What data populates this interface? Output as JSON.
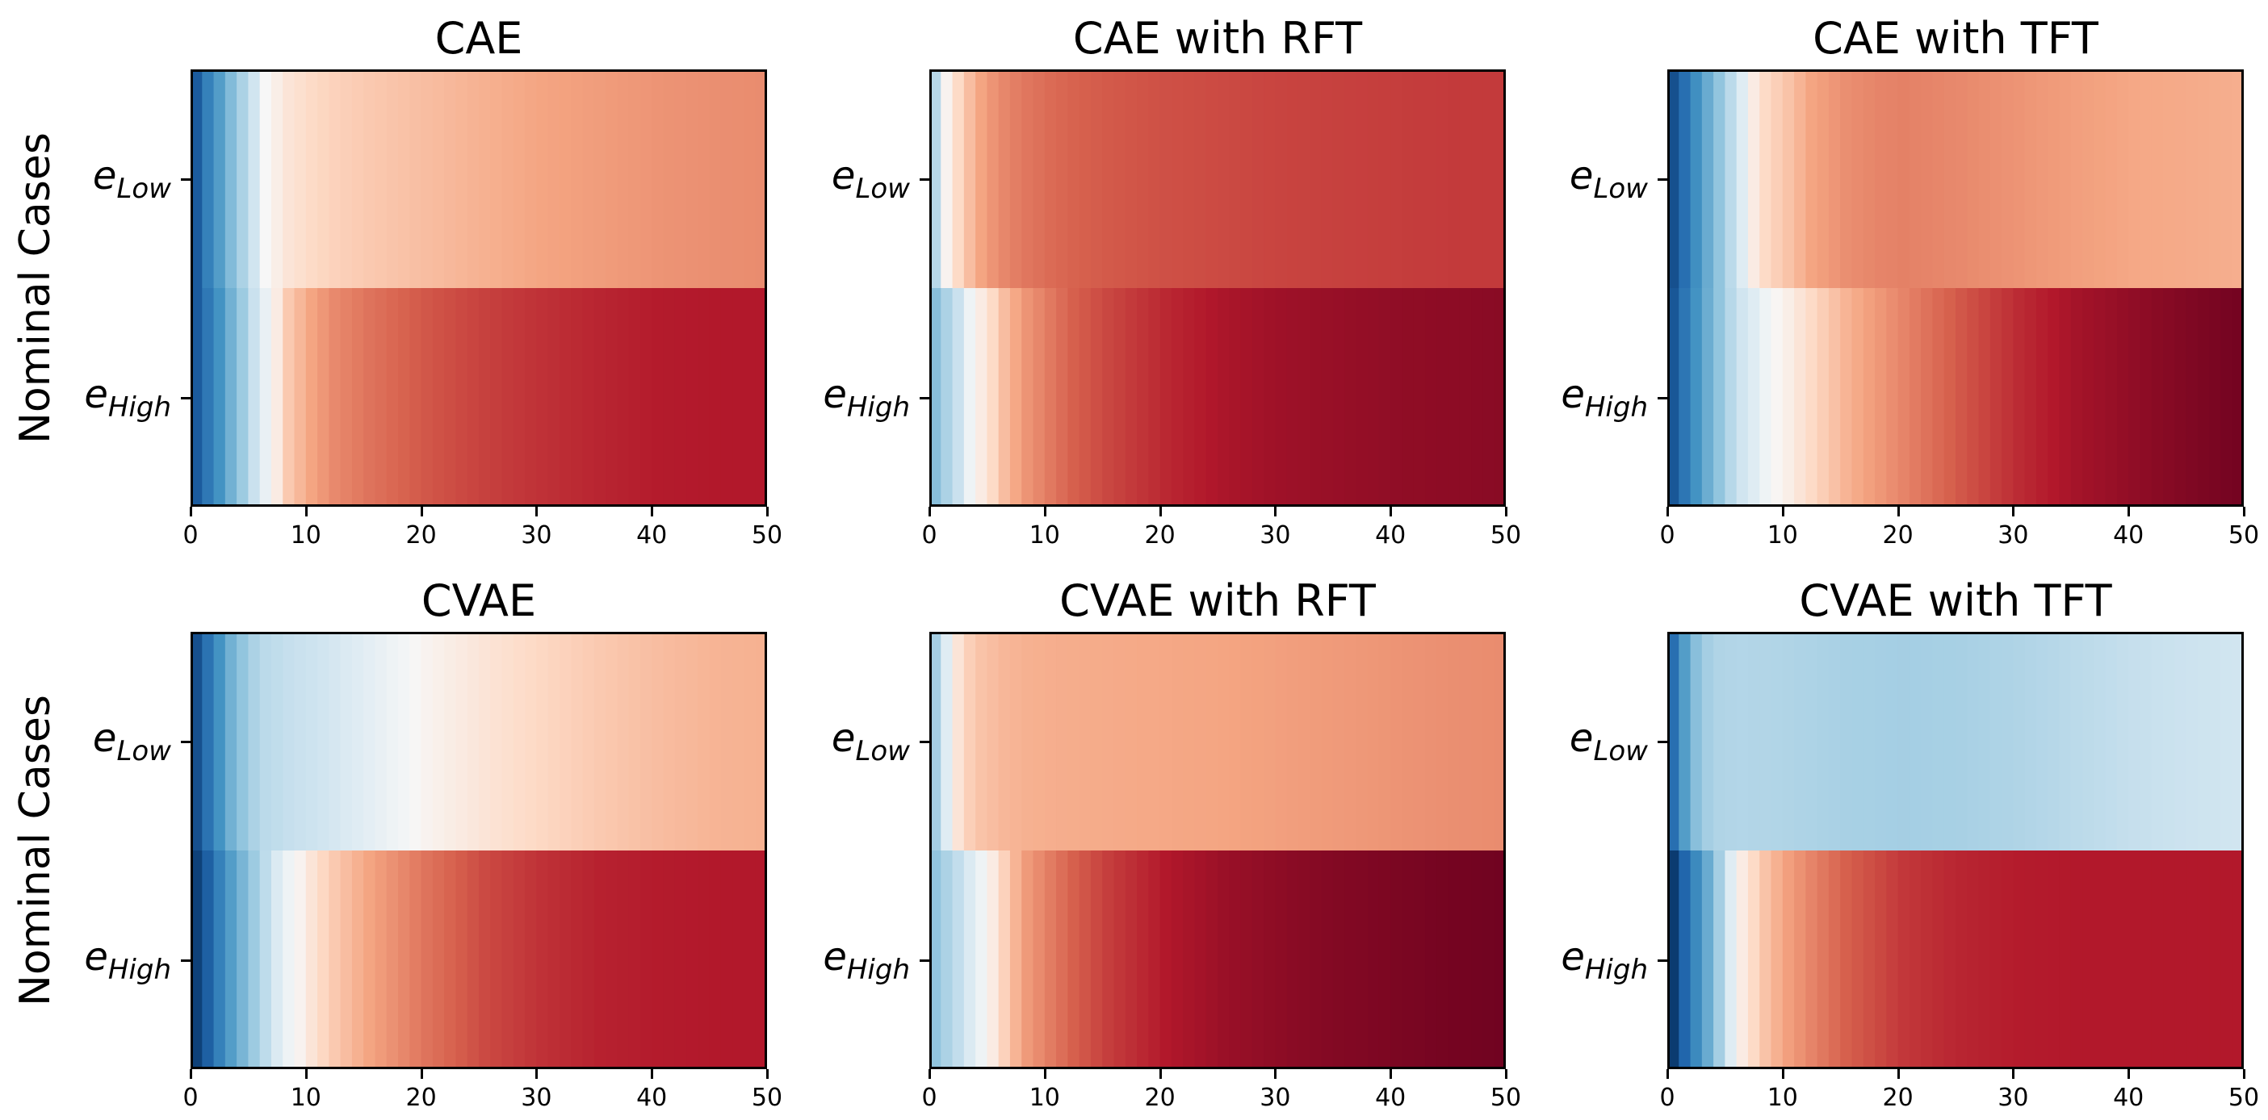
{
  "row_labels": [
    "Nominal Cases",
    "Nominal Cases"
  ],
  "panel_titles": [
    "CAE",
    "CAE with RFT",
    "CAE with TFT",
    "CVAE",
    "CVAE with RFT",
    "CVAE with TFT"
  ],
  "chart_data": [
    {
      "type": "heatmap",
      "title": "CAE",
      "ylabel": "Nominal Cases",
      "yticklabels": [
        {
          "base": "e",
          "sub": "Low"
        },
        {
          "base": "e",
          "sub": "High"
        }
      ],
      "xlim": [
        0,
        50
      ],
      "xticks": [
        0,
        10,
        20,
        30,
        40,
        50
      ],
      "vlim": [
        -1,
        1
      ],
      "colormap": "RdBu_r",
      "series": [
        {
          "name": "e_Low",
          "x": [
            0,
            1,
            2,
            3,
            4,
            5,
            6,
            7,
            8,
            10,
            12,
            15,
            20,
            25,
            30,
            35,
            40,
            45,
            49
          ],
          "values": [
            -0.8,
            -0.6,
            -0.45,
            -0.3,
            -0.18,
            -0.08,
            0.0,
            0.04,
            0.08,
            0.12,
            0.15,
            0.18,
            0.22,
            0.26,
            0.3,
            0.33,
            0.36,
            0.38,
            0.39
          ]
        },
        {
          "name": "e_High",
          "x": [
            0,
            1,
            2,
            3,
            4,
            5,
            6,
            7,
            8,
            10,
            12,
            15,
            20,
            25,
            30,
            35,
            40,
            45,
            49
          ],
          "values": [
            -0.8,
            -0.65,
            -0.5,
            -0.35,
            -0.22,
            -0.1,
            -0.03,
            0.05,
            0.18,
            0.3,
            0.4,
            0.48,
            0.58,
            0.65,
            0.7,
            0.74,
            0.77,
            0.78,
            0.78
          ]
        }
      ]
    },
    {
      "type": "heatmap",
      "title": "CAE with RFT",
      "ylabel": "",
      "yticklabels": [
        {
          "base": "e",
          "sub": "Low"
        },
        {
          "base": "e",
          "sub": "High"
        }
      ],
      "xlim": [
        0,
        50
      ],
      "xticks": [
        0,
        10,
        20,
        30,
        40,
        50
      ],
      "vlim": [
        -1,
        1
      ],
      "colormap": "RdBu_r",
      "series": [
        {
          "name": "e_Low",
          "x": [
            0,
            1,
            2,
            3,
            4,
            5,
            6,
            8,
            10,
            12,
            15,
            20,
            25,
            30,
            35,
            40,
            45,
            49
          ],
          "values": [
            -0.15,
            0.02,
            0.12,
            0.22,
            0.3,
            0.36,
            0.41,
            0.47,
            0.51,
            0.54,
            0.57,
            0.6,
            0.62,
            0.64,
            0.65,
            0.66,
            0.67,
            0.67
          ]
        },
        {
          "name": "e_High",
          "x": [
            0,
            1,
            2,
            3,
            4,
            5,
            6,
            8,
            10,
            12,
            15,
            20,
            25,
            30,
            35,
            40,
            45,
            49
          ],
          "values": [
            -0.28,
            -0.18,
            -0.1,
            -0.02,
            0.05,
            0.12,
            0.22,
            0.36,
            0.46,
            0.55,
            0.63,
            0.73,
            0.8,
            0.84,
            0.86,
            0.88,
            0.89,
            0.9
          ]
        }
      ]
    },
    {
      "type": "heatmap",
      "title": "CAE with TFT",
      "ylabel": "",
      "yticklabels": [
        {
          "base": "e",
          "sub": "Low"
        },
        {
          "base": "e",
          "sub": "High"
        }
      ],
      "xlim": [
        0,
        50
      ],
      "xticks": [
        0,
        10,
        20,
        30,
        40,
        50
      ],
      "vlim": [
        -1,
        1
      ],
      "colormap": "RdBu_r",
      "series": [
        {
          "name": "e_Low",
          "x": [
            0,
            1,
            2,
            3,
            4,
            5,
            6,
            7,
            8,
            10,
            12,
            15,
            18,
            20,
            25,
            30,
            35,
            40,
            45,
            49
          ],
          "values": [
            -0.85,
            -0.7,
            -0.52,
            -0.38,
            -0.25,
            -0.14,
            -0.05,
            0.05,
            0.12,
            0.2,
            0.3,
            0.38,
            0.42,
            0.43,
            0.4,
            0.36,
            0.32,
            0.29,
            0.28,
            0.27
          ]
        },
        {
          "name": "e_High",
          "x": [
            0,
            1,
            2,
            3,
            4,
            5,
            6,
            8,
            10,
            12,
            15,
            20,
            25,
            30,
            35,
            40,
            45,
            49
          ],
          "values": [
            -0.82,
            -0.66,
            -0.5,
            -0.37,
            -0.25,
            -0.15,
            -0.08,
            -0.02,
            0.04,
            0.12,
            0.25,
            0.42,
            0.58,
            0.72,
            0.82,
            0.88,
            0.93,
            0.96
          ]
        }
      ]
    },
    {
      "type": "heatmap",
      "title": "CVAE",
      "ylabel": "Nominal Cases",
      "yticklabels": [
        {
          "base": "e",
          "sub": "Low"
        },
        {
          "base": "e",
          "sub": "High"
        }
      ],
      "xlim": [
        0,
        50
      ],
      "xticks": [
        0,
        10,
        20,
        30,
        40,
        50
      ],
      "vlim": [
        -1,
        1
      ],
      "colormap": "RdBu_r",
      "series": [
        {
          "name": "e_Low",
          "x": [
            0,
            1,
            2,
            3,
            4,
            5,
            6,
            8,
            10,
            12,
            15,
            18,
            20,
            25,
            30,
            35,
            40,
            45,
            49
          ],
          "values": [
            -0.85,
            -0.68,
            -0.5,
            -0.35,
            -0.25,
            -0.18,
            -0.14,
            -0.11,
            -0.09,
            -0.07,
            -0.04,
            -0.01,
            0.02,
            0.08,
            0.13,
            0.18,
            0.22,
            0.25,
            0.26
          ]
        },
        {
          "name": "e_High",
          "x": [
            0,
            1,
            2,
            3,
            4,
            5,
            6,
            7,
            8,
            9,
            10,
            12,
            15,
            20,
            25,
            30,
            35,
            40,
            45,
            49
          ],
          "values": [
            -0.92,
            -0.78,
            -0.6,
            -0.45,
            -0.33,
            -0.22,
            -0.13,
            -0.06,
            -0.02,
            0.02,
            0.08,
            0.18,
            0.3,
            0.48,
            0.62,
            0.7,
            0.75,
            0.77,
            0.78,
            0.78
          ]
        }
      ]
    },
    {
      "type": "heatmap",
      "title": "CVAE with RFT",
      "ylabel": "",
      "yticklabels": [
        {
          "base": "e",
          "sub": "Low"
        },
        {
          "base": "e",
          "sub": "High"
        }
      ],
      "xlim": [
        0,
        50
      ],
      "xticks": [
        0,
        10,
        20,
        30,
        40,
        50
      ],
      "vlim": [
        -1,
        1
      ],
      "colormap": "RdBu_r",
      "series": [
        {
          "name": "e_Low",
          "x": [
            0,
            1,
            2,
            3,
            4,
            5,
            6,
            8,
            10,
            15,
            20,
            25,
            30,
            35,
            40,
            45,
            49
          ],
          "values": [
            -0.2,
            -0.05,
            0.08,
            0.16,
            0.2,
            0.22,
            0.24,
            0.26,
            0.27,
            0.28,
            0.29,
            0.3,
            0.32,
            0.34,
            0.36,
            0.38,
            0.39
          ]
        },
        {
          "name": "e_High",
          "x": [
            0,
            1,
            2,
            3,
            4,
            5,
            6,
            7,
            8,
            10,
            12,
            15,
            20,
            25,
            30,
            35,
            40,
            45,
            49
          ],
          "values": [
            -0.25,
            -0.18,
            -0.12,
            -0.06,
            -0.02,
            0.05,
            0.15,
            0.25,
            0.34,
            0.45,
            0.55,
            0.66,
            0.78,
            0.85,
            0.89,
            0.92,
            0.94,
            0.96,
            0.97
          ]
        }
      ]
    },
    {
      "type": "heatmap",
      "title": "CVAE with TFT",
      "ylabel": "",
      "yticklabels": [
        {
          "base": "e",
          "sub": "Low"
        },
        {
          "base": "e",
          "sub": "High"
        }
      ],
      "xlim": [
        0,
        50
      ],
      "xticks": [
        0,
        10,
        20,
        30,
        40,
        50
      ],
      "vlim": [
        -1,
        1
      ],
      "colormap": "RdBu_r",
      "series": [
        {
          "name": "e_Low",
          "x": [
            0,
            1,
            2,
            3,
            4,
            6,
            10,
            15,
            20,
            25,
            30,
            35,
            40,
            45,
            49
          ],
          "values": [
            -0.7,
            -0.45,
            -0.28,
            -0.2,
            -0.17,
            -0.16,
            -0.17,
            -0.19,
            -0.2,
            -0.19,
            -0.17,
            -0.14,
            -0.11,
            -0.09,
            -0.08
          ]
        },
        {
          "name": "e_High",
          "x": [
            0,
            1,
            2,
            3,
            4,
            5,
            6,
            7,
            8,
            10,
            12,
            15,
            20,
            25,
            30,
            35,
            40,
            45,
            49
          ],
          "values": [
            -0.95,
            -0.75,
            -0.55,
            -0.38,
            -0.2,
            -0.05,
            0.05,
            0.12,
            0.2,
            0.32,
            0.42,
            0.55,
            0.68,
            0.74,
            0.77,
            0.78,
            0.78,
            0.78,
            0.78
          ]
        }
      ]
    }
  ]
}
